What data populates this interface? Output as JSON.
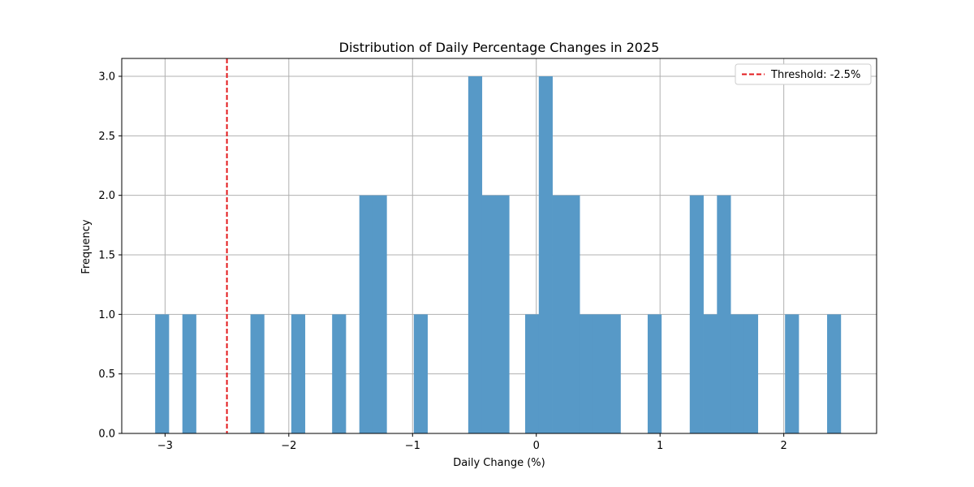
{
  "chart_data": {
    "type": "bar",
    "title": "Distribution of Daily Percentage Changes in 2025",
    "xlabel": "Daily Change (%)",
    "ylabel": "Frequency",
    "xlim": [
      -3.35,
      2.75
    ],
    "ylim": [
      0,
      3.15
    ],
    "x_ticks": [
      -3,
      -2,
      -1,
      0,
      1,
      2
    ],
    "x_tick_labels": [
      "−3",
      "−2",
      "−1",
      "0",
      "1",
      "2"
    ],
    "y_ticks": [
      0,
      0.5,
      1,
      1.5,
      2,
      2.5,
      3
    ],
    "y_tick_labels": [
      "0.0",
      "0.5",
      "1.0",
      "1.5",
      "2.0",
      "2.5",
      "3.0"
    ],
    "grid": true,
    "legend_position": "top-right",
    "bin_width": 0.11,
    "bins": [
      {
        "start": -3.08,
        "count": 1
      },
      {
        "start": -2.86,
        "count": 1
      },
      {
        "start": -2.31,
        "count": 1
      },
      {
        "start": -1.98,
        "count": 1
      },
      {
        "start": -1.65,
        "count": 1
      },
      {
        "start": -1.43,
        "count": 2
      },
      {
        "start": -1.32,
        "count": 2
      },
      {
        "start": -0.99,
        "count": 1
      },
      {
        "start": -0.55,
        "count": 3
      },
      {
        "start": -0.44,
        "count": 2
      },
      {
        "start": -0.33,
        "count": 2
      },
      {
        "start": -0.09,
        "count": 1
      },
      {
        "start": 0.02,
        "count": 3
      },
      {
        "start": 0.13,
        "count": 2
      },
      {
        "start": 0.24,
        "count": 2
      },
      {
        "start": 0.35,
        "count": 1
      },
      {
        "start": 0.46,
        "count": 1
      },
      {
        "start": 0.57,
        "count": 1
      },
      {
        "start": 0.9,
        "count": 1
      },
      {
        "start": 1.24,
        "count": 2
      },
      {
        "start": 1.35,
        "count": 1
      },
      {
        "start": 1.46,
        "count": 2
      },
      {
        "start": 1.57,
        "count": 1
      },
      {
        "start": 1.68,
        "count": 1
      },
      {
        "start": 2.01,
        "count": 1
      },
      {
        "start": 2.35,
        "count": 1
      }
    ],
    "bar_color": "#5799c7",
    "threshold": {
      "value": -2.5,
      "label": "Threshold: -2.5%",
      "color": "#e31a1c",
      "style": "dashed"
    }
  }
}
